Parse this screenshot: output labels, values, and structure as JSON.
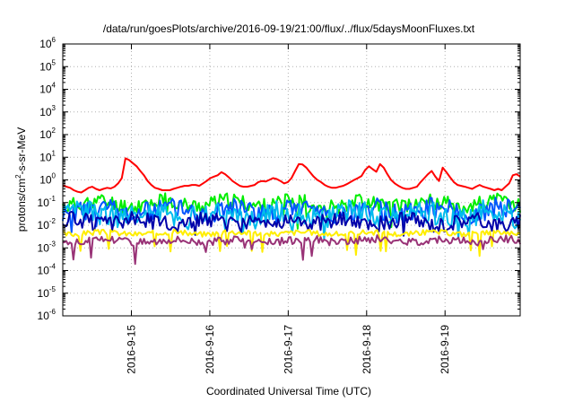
{
  "chart_data": {
    "type": "line",
    "title": "/data/run/goesPlots/archive/2016-09-19/21:00/flux/../flux/5daysMoonFluxes.txt",
    "xlabel": "Coordinated Universal Time (UTC)",
    "ylabel": "protons/cm2-s-sr-MeV",
    "ylabel_parts": {
      "pre": "protons/cm",
      "sup": "2",
      "post": "-s-sr-MeV"
    },
    "y_scale": "log",
    "ylim": [
      1e-06,
      1000000.0
    ],
    "y_ticks": [
      {
        "exp": "-6"
      },
      {
        "exp": "-5"
      },
      {
        "exp": "-4"
      },
      {
        "exp": "-3"
      },
      {
        "exp": "-2"
      },
      {
        "exp": "-1"
      },
      {
        "exp": "0"
      },
      {
        "exp": "1"
      },
      {
        "exp": "2"
      },
      {
        "exp": "3"
      },
      {
        "exp": "4"
      },
      {
        "exp": "5"
      },
      {
        "exp": "6"
      }
    ],
    "x_range": [
      "2016-09-14 03:00",
      "2016-09-19 23:00"
    ],
    "x_ticks": [
      "2016-9-15",
      "2016-9-16",
      "2016-9-17",
      "2016-9-18",
      "2016-9-19"
    ],
    "grid": true,
    "series": [
      {
        "color": "#ff0000",
        "values": [
          0.6,
          0.5,
          0.45,
          0.35,
          0.3,
          0.28,
          0.35,
          0.45,
          0.5,
          0.4,
          0.35,
          0.4,
          0.45,
          0.42,
          0.5,
          0.7,
          1.2,
          9,
          7.5,
          5.5,
          4,
          2.5,
          1.6,
          0.9,
          0.6,
          0.45,
          0.4,
          0.35,
          0.35,
          0.35,
          0.4,
          0.45,
          0.5,
          0.55,
          0.55,
          0.6,
          0.6,
          0.55,
          0.7,
          0.9,
          1.2,
          1.4,
          1.6,
          2.2,
          1.8,
          1.3,
          0.9,
          0.7,
          0.55,
          0.5,
          0.5,
          0.55,
          0.6,
          0.8,
          0.9,
          0.85,
          1.0,
          1.2,
          1.1,
          0.9,
          0.7,
          0.8,
          1.2,
          2.5,
          5,
          4.8,
          3.5,
          2.2,
          1.4,
          1,
          0.8,
          0.6,
          0.5,
          0.45,
          0.45,
          0.5,
          0.55,
          0.65,
          0.8,
          1,
          1.2,
          1.5,
          2.8,
          4,
          3,
          2.3,
          5,
          3.5,
          1.8,
          1,
          0.7,
          0.55,
          0.45,
          0.4,
          0.4,
          0.45,
          0.5,
          0.8,
          1.2,
          1.8,
          2.5,
          1.4,
          0.9,
          3.5,
          2.2,
          1.3,
          0.8,
          0.6,
          0.55,
          0.5,
          0.45,
          0.4,
          0.5,
          0.6,
          0.5,
          0.45,
          0.4,
          0.35,
          0.4,
          0.35,
          0.5,
          0.7,
          1.6,
          1.8,
          1.4
        ]
      },
      {
        "color": "#00ee00",
        "mean": 0.09,
        "amp": 0.35,
        "seed": 11
      },
      {
        "color": "#0055ff",
        "mean": 0.045,
        "amp": 0.45,
        "seed": 23
      },
      {
        "color": "#00bbee",
        "mean": 0.03,
        "amp": 0.5,
        "seed": 37
      },
      {
        "color": "#0000aa",
        "mean": 0.014,
        "amp": 0.35,
        "seed": 51
      },
      {
        "color": "#ffee00",
        "mean": 0.0045,
        "amp": 0.12,
        "seed": 67
      },
      {
        "color": "#993377",
        "mean": 0.0021,
        "amp": 0.18,
        "seed": 79
      }
    ]
  }
}
